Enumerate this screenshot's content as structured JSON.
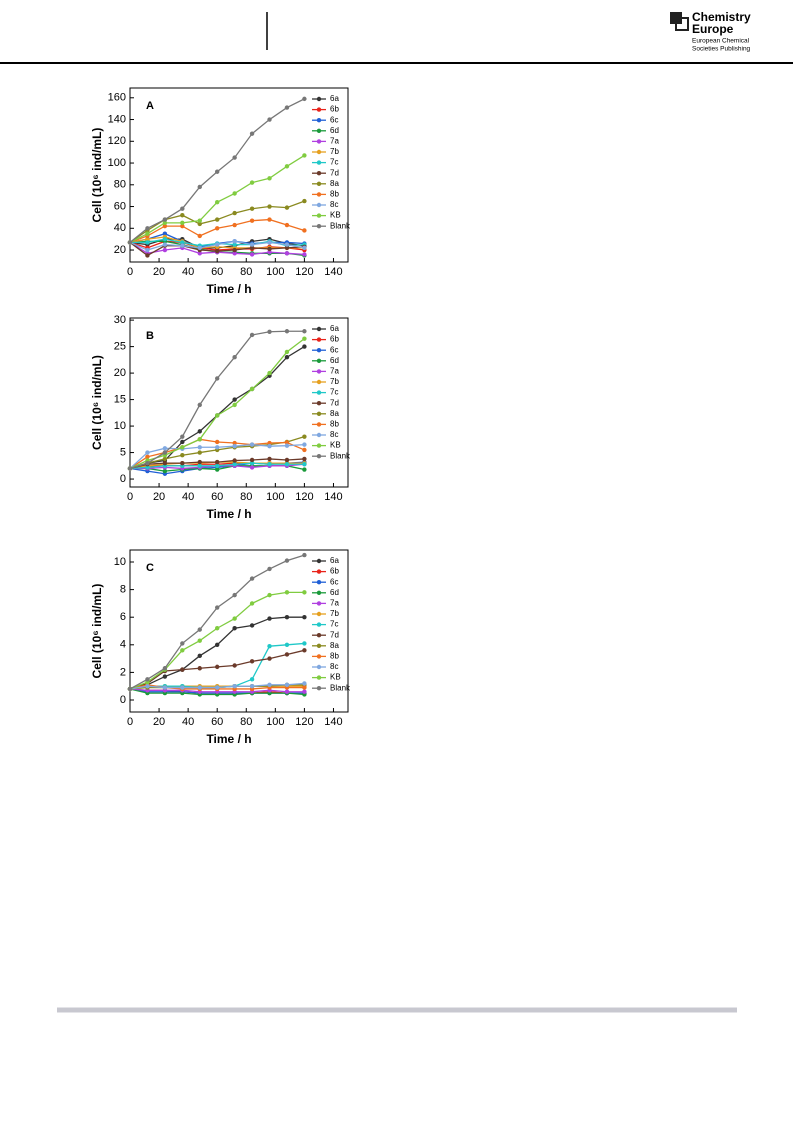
{
  "header": {
    "logo_title_lines": [
      "Chemistry",
      "Europe"
    ],
    "logo_subtitle_lines": [
      "European Chemical",
      "Societies Publishing"
    ]
  },
  "chart_data": [
    {
      "type": "line",
      "annotation": "A",
      "xlabel": "Time / h",
      "ylabel": "Cell (10⁶ ind/mL)",
      "x": [
        0,
        12,
        24,
        36,
        48,
        60,
        72,
        84,
        96,
        108,
        120
      ],
      "xlim": [
        0,
        150
      ],
      "xticks": [
        0,
        20,
        40,
        60,
        80,
        100,
        120,
        140
      ],
      "ylim": [
        9,
        169
      ],
      "yticks": [
        20,
        40,
        60,
        80,
        100,
        120,
        140,
        160
      ],
      "legend": "upper right",
      "series": [
        {
          "name": "6a",
          "color": "#333333",
          "values": [
            27,
            25,
            30,
            30,
            22,
            22,
            24,
            28,
            30,
            26,
            24
          ]
        },
        {
          "name": "6b",
          "color": "#e8231a",
          "values": [
            27,
            22,
            28,
            27,
            22,
            20,
            21,
            21,
            23,
            22,
            20
          ]
        },
        {
          "name": "6c",
          "color": "#1f5fd6",
          "values": [
            27,
            30,
            35,
            28,
            23,
            26,
            28,
            26,
            27,
            27,
            26
          ]
        },
        {
          "name": "6d",
          "color": "#1a9a3a",
          "values": [
            27,
            28,
            28,
            25,
            21,
            18,
            18,
            17,
            17,
            17,
            15
          ]
        },
        {
          "name": "7a",
          "color": "#b040e0",
          "values": [
            27,
            17,
            20,
            22,
            17,
            18,
            17,
            16,
            18,
            17,
            16
          ]
        },
        {
          "name": "7b",
          "color": "#e6a020",
          "values": [
            27,
            30,
            32,
            28,
            22,
            23,
            22,
            22,
            22,
            22,
            22
          ]
        },
        {
          "name": "7c",
          "color": "#20c8c8",
          "values": [
            27,
            27,
            30,
            27,
            24,
            26,
            25,
            25,
            28,
            24,
            25
          ]
        },
        {
          "name": "7d",
          "color": "#6b3a2a",
          "values": [
            27,
            15,
            24,
            24,
            20,
            19,
            20,
            22,
            21,
            22,
            23
          ]
        },
        {
          "name": "8a",
          "color": "#8a8a20",
          "values": [
            27,
            38,
            48,
            52,
            44,
            48,
            54,
            58,
            60,
            59,
            65
          ]
        },
        {
          "name": "8b",
          "color": "#f07020",
          "values": [
            27,
            33,
            42,
            42,
            33,
            40,
            43,
            47,
            48,
            43,
            38
          ]
        },
        {
          "name": "8c",
          "color": "#80a8e0",
          "values": [
            27,
            20,
            25,
            24,
            22,
            25,
            28,
            25,
            27,
            25,
            22
          ]
        },
        {
          "name": "KB",
          "color": "#80cc40",
          "values": [
            27,
            35,
            45,
            45,
            47,
            64,
            72,
            82,
            86,
            97,
            107
          ]
        },
        {
          "name": "Blank",
          "color": "#777777",
          "values": [
            27,
            40,
            48,
            58,
            78,
            92,
            105,
            127,
            140,
            151,
            159
          ]
        }
      ]
    },
    {
      "type": "line",
      "annotation": "B",
      "xlabel": "Time / h",
      "ylabel": "Cell (10⁶ ind/mL)",
      "x": [
        0,
        12,
        24,
        36,
        48,
        60,
        72,
        84,
        96,
        108,
        120
      ],
      "xlim": [
        0,
        150
      ],
      "xticks": [
        0,
        20,
        40,
        60,
        80,
        100,
        120,
        140
      ],
      "ylim": [
        -1.5,
        30.4
      ],
      "yticks": [
        0,
        5,
        10,
        15,
        20,
        25,
        30
      ],
      "legend": "upper right",
      "series": [
        {
          "name": "6a",
          "color": "#333333",
          "values": [
            2,
            3,
            3.5,
            7,
            9,
            12,
            15,
            17,
            19.5,
            23,
            25
          ]
        },
        {
          "name": "6b",
          "color": "#e8231a",
          "values": [
            2,
            2.5,
            2.5,
            2.5,
            2.8,
            2.8,
            3,
            3,
            3,
            3,
            3
          ]
        },
        {
          "name": "6c",
          "color": "#1f5fd6",
          "values": [
            2,
            1.5,
            1,
            1.5,
            2,
            2.2,
            2.5,
            3,
            2.8,
            3,
            3.2
          ]
        },
        {
          "name": "6d",
          "color": "#1a9a3a",
          "values": [
            2,
            2,
            1.5,
            1.8,
            2,
            1.8,
            2.5,
            2.5,
            2.5,
            2.5,
            1.8
          ]
        },
        {
          "name": "7a",
          "color": "#b040e0",
          "values": [
            2,
            2,
            2.2,
            2,
            2.2,
            2.5,
            2.5,
            2.2,
            2.5,
            2.5,
            2.8
          ]
        },
        {
          "name": "7b",
          "color": "#e6a020",
          "values": [
            2,
            2.5,
            2.8,
            3,
            3,
            3.2,
            3.2,
            3,
            3,
            3,
            3
          ]
        },
        {
          "name": "7c",
          "color": "#20c8c8",
          "values": [
            2,
            2.2,
            2.5,
            2.5,
            2.5,
            2.5,
            2.8,
            3,
            2.8,
            2.8,
            2.8
          ]
        },
        {
          "name": "7d",
          "color": "#6b3a2a",
          "values": [
            2,
            2.8,
            3,
            3,
            3.2,
            3.2,
            3.5,
            3.6,
            3.8,
            3.6,
            3.8
          ]
        },
        {
          "name": "8a",
          "color": "#8a8a20",
          "values": [
            2,
            3,
            3.8,
            4.5,
            5,
            5.5,
            6,
            6.2,
            6.5,
            7,
            8
          ]
        },
        {
          "name": "8b",
          "color": "#f07020",
          "values": [
            2,
            4.2,
            5,
            6,
            7.5,
            7,
            6.8,
            6.5,
            6.8,
            6.9,
            5.5
          ]
        },
        {
          "name": "8c",
          "color": "#80a8e0",
          "values": [
            2,
            5,
            5.8,
            5.7,
            6,
            6,
            6.2,
            6.5,
            6.2,
            6.3,
            6.5
          ]
        },
        {
          "name": "KB",
          "color": "#80cc40",
          "values": [
            2,
            3.5,
            4.5,
            6,
            7.5,
            12,
            14,
            17,
            20,
            24,
            26.5
          ]
        },
        {
          "name": "Blank",
          "color": "#777777",
          "values": [
            2,
            3,
            5,
            8,
            14,
            19,
            23,
            27.2,
            27.8,
            27.9,
            27.9
          ]
        }
      ]
    },
    {
      "type": "line",
      "annotation": "C",
      "xlabel": "Time / h",
      "ylabel": "Cell (10⁶ ind/mL)",
      "x": [
        0,
        12,
        24,
        36,
        48,
        60,
        72,
        84,
        96,
        108,
        120
      ],
      "xlim": [
        0,
        150
      ],
      "xticks": [
        0,
        20,
        40,
        60,
        80,
        100,
        120,
        140
      ],
      "ylim": [
        -0.87,
        10.87
      ],
      "yticks": [
        0,
        2,
        4,
        6,
        8,
        10
      ],
      "legend": "upper right",
      "series": [
        {
          "name": "6a",
          "color": "#333333",
          "values": [
            0.8,
            1.1,
            1.7,
            2.2,
            3.2,
            4,
            5.2,
            5.4,
            5.9,
            6,
            6
          ]
        },
        {
          "name": "6b",
          "color": "#e8231a",
          "values": [
            0.8,
            0.7,
            0.7,
            0.6,
            0.5,
            0.5,
            0.5,
            0.5,
            0.6,
            0.5,
            0.5
          ]
        },
        {
          "name": "6c",
          "color": "#1f5fd6",
          "values": [
            0.8,
            0.6,
            0.6,
            0.6,
            0.5,
            0.5,
            0.5,
            0.5,
            0.5,
            0.5,
            0.5
          ]
        },
        {
          "name": "6d",
          "color": "#1a9a3a",
          "values": [
            0.8,
            0.5,
            0.5,
            0.5,
            0.4,
            0.4,
            0.4,
            0.5,
            0.5,
            0.5,
            0.4
          ]
        },
        {
          "name": "7a",
          "color": "#b040e0",
          "values": [
            0.8,
            0.7,
            0.7,
            0.7,
            0.6,
            0.6,
            0.6,
            0.6,
            0.7,
            0.6,
            0.6
          ]
        },
        {
          "name": "7b",
          "color": "#e6a020",
          "values": [
            0.8,
            1,
            1,
            1,
            1,
            1,
            1,
            1,
            1,
            1,
            1
          ]
        },
        {
          "name": "7c",
          "color": "#20c8c8",
          "values": [
            0.8,
            1,
            1,
            1,
            0.9,
            0.9,
            1,
            1.5,
            3.9,
            4,
            4.1
          ]
        },
        {
          "name": "7d",
          "color": "#6b3a2a",
          "values": [
            0.8,
            1.2,
            2.1,
            2.2,
            2.3,
            2.4,
            2.5,
            2.8,
            3,
            3.3,
            3.6
          ]
        },
        {
          "name": "8a",
          "color": "#8a8a20",
          "values": [
            0.8,
            0.9,
            0.9,
            0.9,
            0.9,
            0.9,
            1,
            1,
            1,
            1.1,
            1.1
          ]
        },
        {
          "name": "8b",
          "color": "#f07020",
          "values": [
            0.8,
            1.1,
            0.9,
            0.8,
            0.8,
            0.8,
            0.8,
            0.8,
            0.9,
            0.9,
            0.9
          ]
        },
        {
          "name": "8c",
          "color": "#80a8e0",
          "values": [
            0.8,
            1,
            0.9,
            0.9,
            0.9,
            0.9,
            1,
            1,
            1.1,
            1.1,
            1.2
          ]
        },
        {
          "name": "KB",
          "color": "#80cc40",
          "values": [
            0.8,
            1.3,
            2.2,
            3.6,
            4.3,
            5.2,
            5.9,
            7,
            7.6,
            7.8,
            7.8
          ]
        },
        {
          "name": "Blank",
          "color": "#777777",
          "values": [
            0.8,
            1.5,
            2.3,
            4.1,
            5.1,
            6.7,
            7.6,
            8.8,
            9.5,
            10.1,
            10.5
          ]
        }
      ]
    }
  ]
}
